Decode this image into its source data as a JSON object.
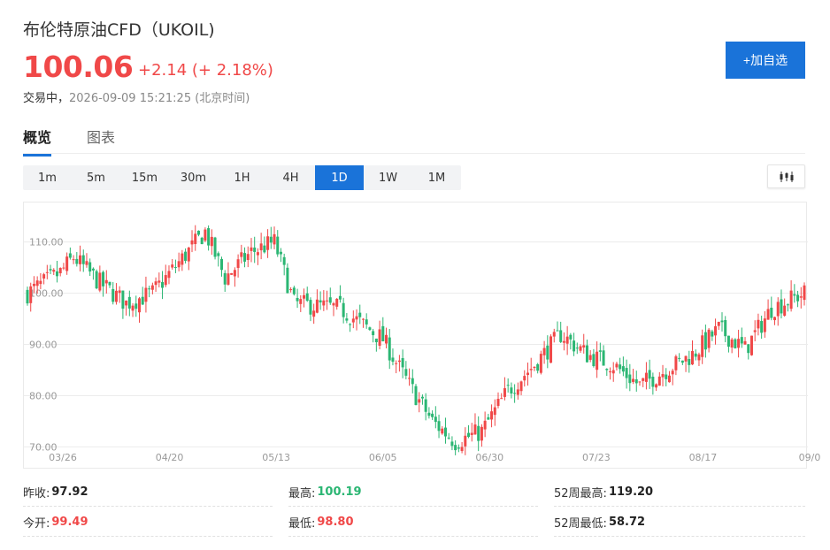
{
  "header": {
    "title": "布伦特原油CFD（UKOIL)",
    "price": "100.06",
    "change": "+2.14 (+ 2.18%)",
    "status_lead": "交易中，",
    "status_time": "2026-09-09 15:21:25 (北京时间)",
    "add_watchlist_label": "+加自选"
  },
  "tabs": [
    {
      "label": "概览",
      "active": true
    },
    {
      "label": "图表",
      "active": false
    }
  ],
  "periods": [
    "1m",
    "5m",
    "15m",
    "30m",
    "1H",
    "4H",
    "1D",
    "1W",
    "1M"
  ],
  "active_period": "1D",
  "colors": {
    "up": "#f04848",
    "down": "#2bb673",
    "accent": "#1a73d9"
  },
  "stats": [
    {
      "label": "昨收:",
      "value": "97.92",
      "tone": "neutral"
    },
    {
      "label": "最高:",
      "value": "100.19",
      "tone": "down"
    },
    {
      "label": "52周最高:",
      "value": "119.20",
      "tone": "neutral"
    },
    {
      "label": "今开:",
      "value": "99.49",
      "tone": "up"
    },
    {
      "label": "最低:",
      "value": "98.80",
      "tone": "up"
    },
    {
      "label": "52周最低:",
      "value": "58.72",
      "tone": "neutral"
    }
  ],
  "chart_data": {
    "type": "candlestick",
    "y_ticks": [
      "110.00",
      "100.00",
      "90.00",
      "80.00",
      "70.00"
    ],
    "x_ticks": [
      "03/26",
      "04/20",
      "05/13",
      "06/05",
      "06/30",
      "07/23",
      "08/17",
      "09/0"
    ],
    "ylim": [
      68,
      117
    ],
    "grid": true,
    "trend_anchors": [
      [
        0,
        100
      ],
      [
        10,
        104
      ],
      [
        14,
        107
      ],
      [
        22,
        102
      ],
      [
        30,
        98
      ],
      [
        38,
        100
      ],
      [
        46,
        106
      ],
      [
        54,
        112
      ],
      [
        60,
        103
      ],
      [
        68,
        108
      ],
      [
        75,
        110
      ],
      [
        81,
        98
      ],
      [
        95,
        97
      ],
      [
        108,
        91
      ],
      [
        116,
        82
      ],
      [
        123,
        75
      ],
      [
        130,
        71
      ],
      [
        138,
        73
      ],
      [
        146,
        81
      ],
      [
        154,
        86
      ],
      [
        162,
        92
      ],
      [
        170,
        88
      ],
      [
        178,
        86
      ],
      [
        186,
        82
      ],
      [
        194,
        85
      ],
      [
        202,
        88
      ],
      [
        210,
        93
      ],
      [
        218,
        89
      ],
      [
        226,
        97
      ],
      [
        236,
        100
      ]
    ]
  }
}
